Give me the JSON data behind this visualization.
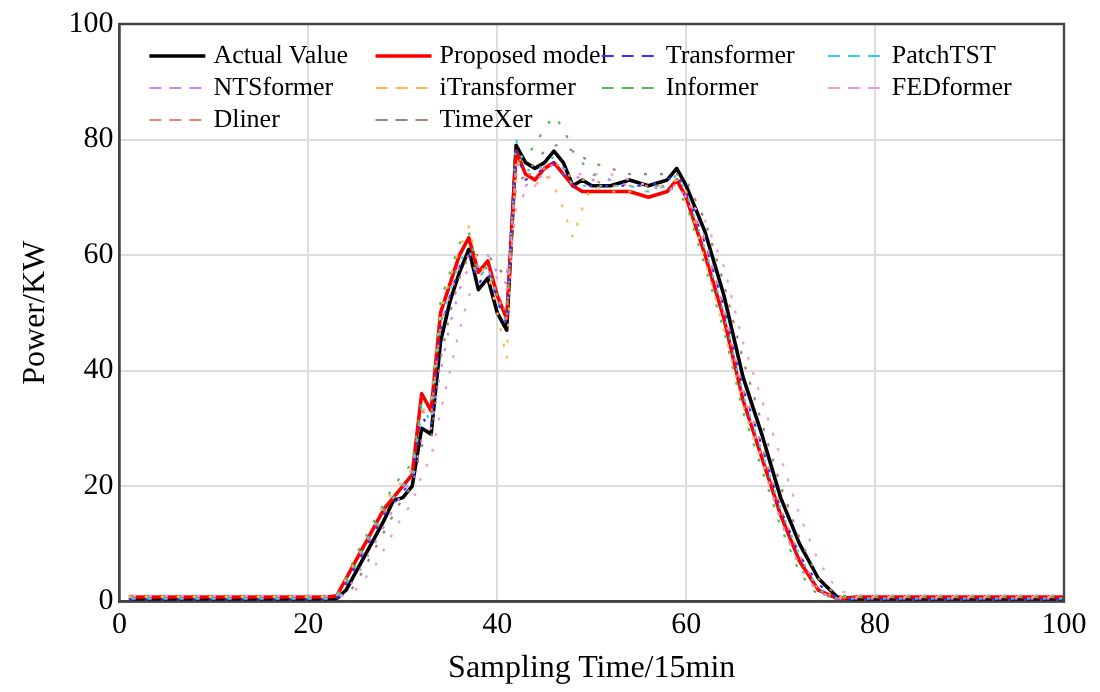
{
  "chart_data": {
    "type": "line",
    "xlabel": "Sampling Time/15min",
    "ylabel": "Power/KW",
    "x": [
      1,
      22,
      23,
      24,
      25,
      26,
      27,
      28,
      29,
      30,
      31,
      32,
      33,
      34,
      35,
      36,
      37,
      38,
      39,
      40,
      41,
      42,
      43,
      44,
      45,
      46,
      47,
      48,
      49,
      50,
      52,
      54,
      56,
      58,
      59,
      60,
      62,
      64,
      66,
      68,
      70,
      72,
      74,
      76,
      78,
      80,
      100
    ],
    "series": [
      {
        "name": "Actual Value",
        "color": "#000000",
        "line_style": "solid",
        "values": [
          0.3,
          0.3,
          0.5,
          2,
          5,
          8,
          11,
          14,
          17.5,
          18,
          20,
          30,
          29,
          45,
          52,
          57,
          61,
          54,
          56,
          50,
          47,
          79,
          76,
          75,
          76,
          78,
          76,
          72,
          73,
          72,
          72,
          73,
          72,
          73,
          75,
          72,
          64,
          53,
          39,
          29,
          18,
          10,
          4,
          0.8,
          0.3,
          0.3,
          0.3
        ]
      },
      {
        "name": "Proposed model",
        "color": "#ff0000",
        "line_style": "solid",
        "values": [
          0.8,
          0.8,
          1,
          4,
          7,
          10,
          13,
          16,
          18,
          20,
          22,
          36,
          33,
          50,
          55,
          60,
          63,
          57,
          59,
          53,
          49,
          78,
          74,
          73,
          75,
          76,
          74,
          72,
          71,
          71,
          71,
          71,
          70,
          71,
          73,
          70,
          60,
          49,
          35,
          25,
          15,
          7,
          2,
          0.5,
          0.8,
          0.8,
          0.8
        ]
      },
      {
        "name": "Transformer",
        "color": "#3333ff",
        "line_style": "dashed",
        "values": [
          0.3,
          0.3,
          0.5,
          3,
          6,
          9,
          12,
          15,
          17,
          19,
          21,
          32,
          30,
          47,
          53,
          58,
          60,
          55,
          57,
          52,
          48,
          78,
          73,
          74,
          75,
          76,
          74,
          72,
          72,
          72,
          72,
          72,
          72,
          73,
          74,
          71,
          62,
          51,
          37,
          27,
          16,
          8,
          3,
          0.6,
          0.3,
          0.3,
          0.3
        ]
      },
      {
        "name": "PatchTST",
        "color": "#33ccee",
        "line_style": "dashed",
        "values": [
          0.5,
          0.5,
          0.8,
          3,
          6,
          10,
          13,
          16,
          18,
          20,
          22,
          34,
          31,
          48,
          54,
          59,
          61,
          56,
          58,
          52,
          48,
          80,
          75,
          74,
          76,
          77,
          75,
          72,
          72,
          72,
          72,
          72,
          71,
          72,
          74,
          71,
          61,
          50,
          36,
          26,
          16,
          8,
          2,
          0.5,
          0.5,
          0.5,
          0.5
        ]
      },
      {
        "name": "NTSformer",
        "color": "#cc88ee",
        "line_style": "dashed",
        "values": [
          0.5,
          0.5,
          0.5,
          2,
          4,
          7,
          10,
          13,
          16,
          19,
          21,
          28,
          30,
          40,
          48,
          54,
          58,
          58,
          60,
          57,
          55,
          74,
          72,
          73,
          74,
          76,
          75,
          74,
          73,
          73,
          73,
          72,
          72,
          71,
          72,
          70,
          63,
          50,
          36,
          25,
          14,
          6,
          1.5,
          0.5,
          0.5,
          0.5,
          0.5
        ]
      },
      {
        "name": "iTransformer",
        "color": "#ffb84d",
        "line_style": "dashed",
        "values": [
          0.8,
          0.8,
          1,
          4,
          7,
          10,
          13,
          17,
          19,
          21,
          23,
          33,
          34,
          50,
          56,
          61,
          65,
          58,
          57,
          50,
          42,
          77,
          73,
          72,
          74,
          72,
          68,
          63,
          68,
          72,
          71,
          71,
          71,
          72,
          73,
          71,
          59,
          47,
          34,
          24,
          14,
          6,
          1.5,
          0.8,
          0.8,
          0.8,
          0.8
        ]
      },
      {
        "name": "Informer",
        "color": "#55bb55",
        "line_style": "dashed",
        "values": [
          0.8,
          0.8,
          1,
          4,
          8,
          11,
          14,
          17,
          20,
          22,
          24,
          35,
          35,
          52,
          57,
          62,
          64,
          57,
          58,
          53,
          50,
          76,
          77,
          79,
          82,
          84,
          82,
          78,
          76,
          74,
          73,
          72,
          72,
          72,
          71,
          69,
          58,
          47,
          33,
          23,
          13,
          5,
          1,
          0.8,
          0.8,
          0.8,
          0.8
        ]
      },
      {
        "name": "FEDformer",
        "color": "#ee99dd",
        "line_style": "dashed",
        "values": [
          1,
          1,
          1,
          1,
          2,
          4,
          6,
          9,
          12,
          15,
          17,
          22,
          25,
          33,
          40,
          47,
          53,
          55,
          58,
          56,
          54,
          68,
          71,
          72,
          73,
          74,
          74,
          74,
          74,
          74,
          74,
          73,
          72,
          72,
          72,
          70,
          66,
          58,
          45,
          35,
          25,
          15,
          7,
          2,
          1,
          1,
          1
        ]
      },
      {
        "name": "Dliner",
        "color": "#f08070",
        "line_style": "dashed",
        "values": [
          1,
          1,
          1,
          3,
          6,
          9,
          12,
          15,
          18,
          20,
          22,
          33,
          32,
          48,
          53,
          58,
          60,
          56,
          58,
          53,
          49,
          76,
          74,
          74,
          75,
          76,
          75,
          73,
          73,
          73,
          72,
          72,
          72,
          72,
          73,
          71,
          62,
          51,
          37,
          27,
          16,
          8,
          2,
          0.5,
          1,
          1,
          1
        ]
      },
      {
        "name": "TimeXer",
        "color": "#a08070",
        "line_style": "dashed",
        "values": [
          1,
          1,
          1,
          1,
          3,
          6,
          9,
          12,
          15,
          18,
          20,
          27,
          28,
          42,
          50,
          56,
          60,
          60,
          60,
          58,
          56,
          72,
          74,
          76,
          78,
          79,
          79,
          78,
          77,
          76,
          75,
          74,
          74,
          74,
          74,
          73,
          66,
          55,
          42,
          31,
          20,
          11,
          4,
          1,
          1,
          1,
          1
        ]
      }
    ],
    "xlim": [
      0,
      100
    ],
    "xticks": [
      0,
      20,
      40,
      60,
      80,
      100
    ],
    "ylim": [
      0,
      100
    ],
    "yticks": [
      0,
      20,
      40,
      60,
      80,
      100
    ],
    "grid": true,
    "legend": "top left",
    "marker": "none"
  }
}
